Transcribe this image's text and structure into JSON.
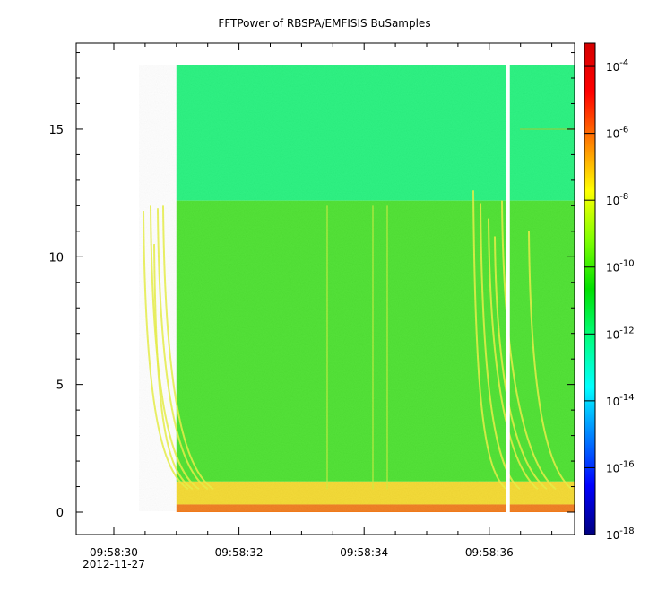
{
  "chart_data": {
    "type": "heatmap",
    "title": "FFTPower of RBSPA/EMFISIS  BuSamples",
    "xlabel": "",
    "ylabel": "",
    "x_ticks": [
      {
        "time": "09:58:30",
        "date": "2012-11-27"
      },
      {
        "time": "09:58:32",
        "date": ""
      },
      {
        "time": "09:58:34",
        "date": ""
      },
      {
        "time": "09:58:36",
        "date": ""
      }
    ],
    "y_ticks": [
      0,
      5,
      10,
      15
    ],
    "ylim": [
      -0.9,
      18.5
    ],
    "data_extent": {
      "x_start": "09:58:31.0",
      "x_end": "09:58:37.7",
      "y_min": 0,
      "y_max": 17.5
    },
    "data_gap_at": "09:58:36.3",
    "colorbar": {
      "scale": "log",
      "range": [
        1e-18,
        0.0005
      ],
      "ticks": [
        {
          "base": "10",
          "exp": "-4"
        },
        {
          "base": "10",
          "exp": "-6"
        },
        {
          "base": "10",
          "exp": "-8"
        },
        {
          "base": "10",
          "exp": "-10"
        },
        {
          "base": "10",
          "exp": "-12"
        },
        {
          "base": "10",
          "exp": "-14"
        },
        {
          "base": "10",
          "exp": "-16"
        },
        {
          "base": "10",
          "exp": "-18"
        }
      ],
      "colors": [
        "#00007f",
        "#0000ff",
        "#0080ff",
        "#00ffff",
        "#00ff80",
        "#00e000",
        "#80ff00",
        "#ffff00",
        "#ff8000",
        "#ff0000",
        "#d40000"
      ]
    },
    "bands": [
      {
        "y_from": 12.2,
        "y_to": 17.5,
        "power": "1e-11",
        "color": "#22f27c"
      },
      {
        "y_from": 1.2,
        "y_to": 12.2,
        "power": "1e-10",
        "color": "#49e12c"
      },
      {
        "y_from": 0.3,
        "y_to": 1.2,
        "power": "1e-8",
        "color": "#f4d92c"
      },
      {
        "y_from": 0,
        "y_to": 0.3,
        "power": "1e-6",
        "color": "#f07a1a"
      }
    ]
  }
}
